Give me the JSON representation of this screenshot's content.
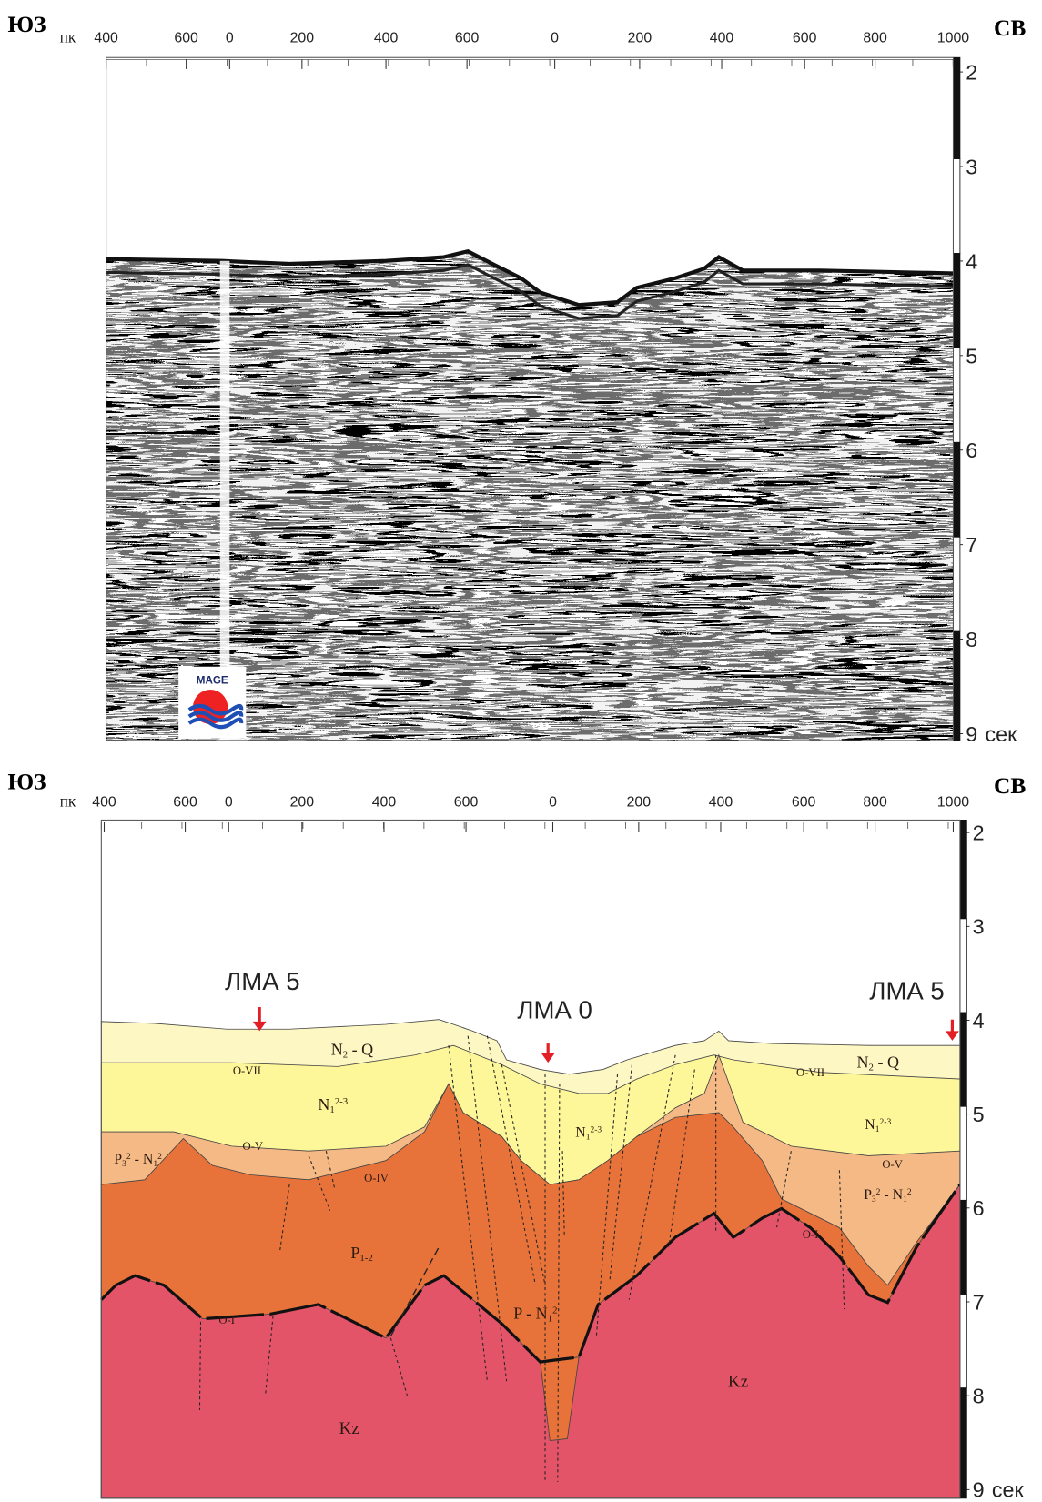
{
  "panels": [
    {
      "left": "ЮЗ",
      "right": "СВ",
      "pk": "ПК",
      "pk_ticks": [
        400,
        600,
        0,
        200,
        400,
        600,
        0,
        200,
        400,
        600,
        800,
        1000
      ],
      "time_ticks": [
        2,
        3,
        4,
        5,
        6,
        7,
        8,
        9
      ],
      "time_unit": "сек",
      "logo": "MAGE"
    },
    {
      "left": "ЮЗ",
      "right": "СВ",
      "pk": "ПК",
      "pk_ticks": [
        400,
        600,
        0,
        200,
        400,
        600,
        0,
        200,
        400,
        600,
        800,
        1000
      ],
      "time_ticks": [
        2,
        3,
        4,
        5,
        6,
        7,
        8,
        9
      ],
      "time_unit": "сек",
      "markers": [
        "ЛМА 5",
        "ЛМА 0",
        "ЛМА 5"
      ],
      "units": [
        {
          "parts": [
            {
              "text": "N"
            },
            {
              "text": "2",
              "style": "sub"
            },
            {
              "text": " - Q"
            }
          ]
        },
        {
          "parts": [
            {
              "text": "O-VII"
            }
          ]
        },
        {
          "parts": [
            {
              "text": "N"
            },
            {
              "text": "1",
              "style": "sub"
            },
            {
              "text": "2-3",
              "style": "sup"
            }
          ]
        },
        {
          "parts": [
            {
              "text": "O-V"
            }
          ]
        },
        {
          "parts": [
            {
              "text": "P"
            },
            {
              "text": "3",
              "style": "sub"
            },
            {
              "text": "2",
              "style": "sup"
            },
            {
              "text": " - N"
            },
            {
              "text": "1",
              "style": "sub"
            },
            {
              "text": "2",
              "style": "sup"
            }
          ]
        },
        {
          "parts": [
            {
              "text": "O-IV"
            }
          ]
        },
        {
          "parts": [
            {
              "text": "P"
            },
            {
              "text": "1-2",
              "style": "sub"
            }
          ]
        },
        {
          "parts": [
            {
              "text": "O-I"
            }
          ]
        },
        {
          "parts": [
            {
              "text": "P - N"
            },
            {
              "text": "1",
              "style": "sub"
            },
            {
              "text": "2",
              "style": "sup"
            }
          ]
        },
        {
          "parts": [
            {
              "text": "Kz"
            }
          ]
        },
        {
          "parts": [
            {
              "text": "Kz"
            }
          ]
        },
        {
          "parts": [
            {
              "text": "N"
            },
            {
              "text": "1",
              "style": "sub"
            },
            {
              "text": "2-3",
              "style": "sup"
            }
          ]
        },
        {
          "parts": [
            {
              "text": "N"
            },
            {
              "text": "2",
              "style": "sub"
            },
            {
              "text": " - Q"
            }
          ]
        },
        {
          "parts": [
            {
              "text": "O-VII"
            }
          ]
        },
        {
          "parts": [
            {
              "text": "N"
            },
            {
              "text": "1",
              "style": "sub"
            },
            {
              "text": "2-3",
              "style": "sup"
            }
          ]
        },
        {
          "parts": [
            {
              "text": "O-V"
            }
          ]
        },
        {
          "parts": [
            {
              "text": "P"
            },
            {
              "text": "3",
              "style": "sub"
            },
            {
              "text": "2",
              "style": "sup"
            },
            {
              "text": " - N"
            },
            {
              "text": "1",
              "style": "sub"
            },
            {
              "text": "2",
              "style": "sup"
            }
          ]
        },
        {
          "parts": [
            {
              "text": "O-I"
            }
          ]
        }
      ]
    }
  ]
}
